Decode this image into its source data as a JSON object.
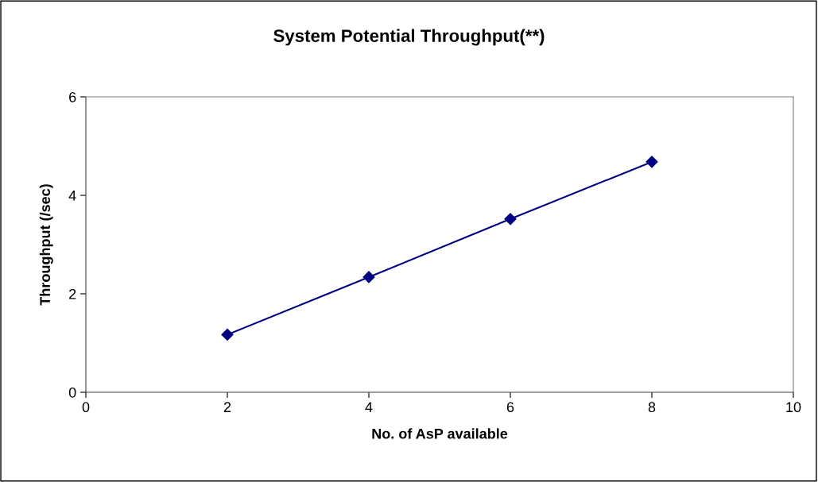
{
  "chart_data": {
    "type": "line",
    "title": "System Potential Throughput(**)",
    "xlabel": "No. of AsP available",
    "ylabel": "Throughput (/sec)",
    "x": [
      2,
      4,
      6,
      8
    ],
    "series": [
      {
        "color": "#000080",
        "values": [
          1.17,
          2.34,
          3.52,
          4.68
        ]
      }
    ],
    "xlim": [
      0,
      10
    ],
    "xticks": [
      0,
      2,
      4,
      6,
      8,
      10
    ],
    "ylim": [
      0,
      6
    ],
    "yticks": [
      0,
      2,
      4,
      6
    ],
    "grid": false,
    "legend": false,
    "marker": "diamond",
    "line_style": "solid"
  }
}
